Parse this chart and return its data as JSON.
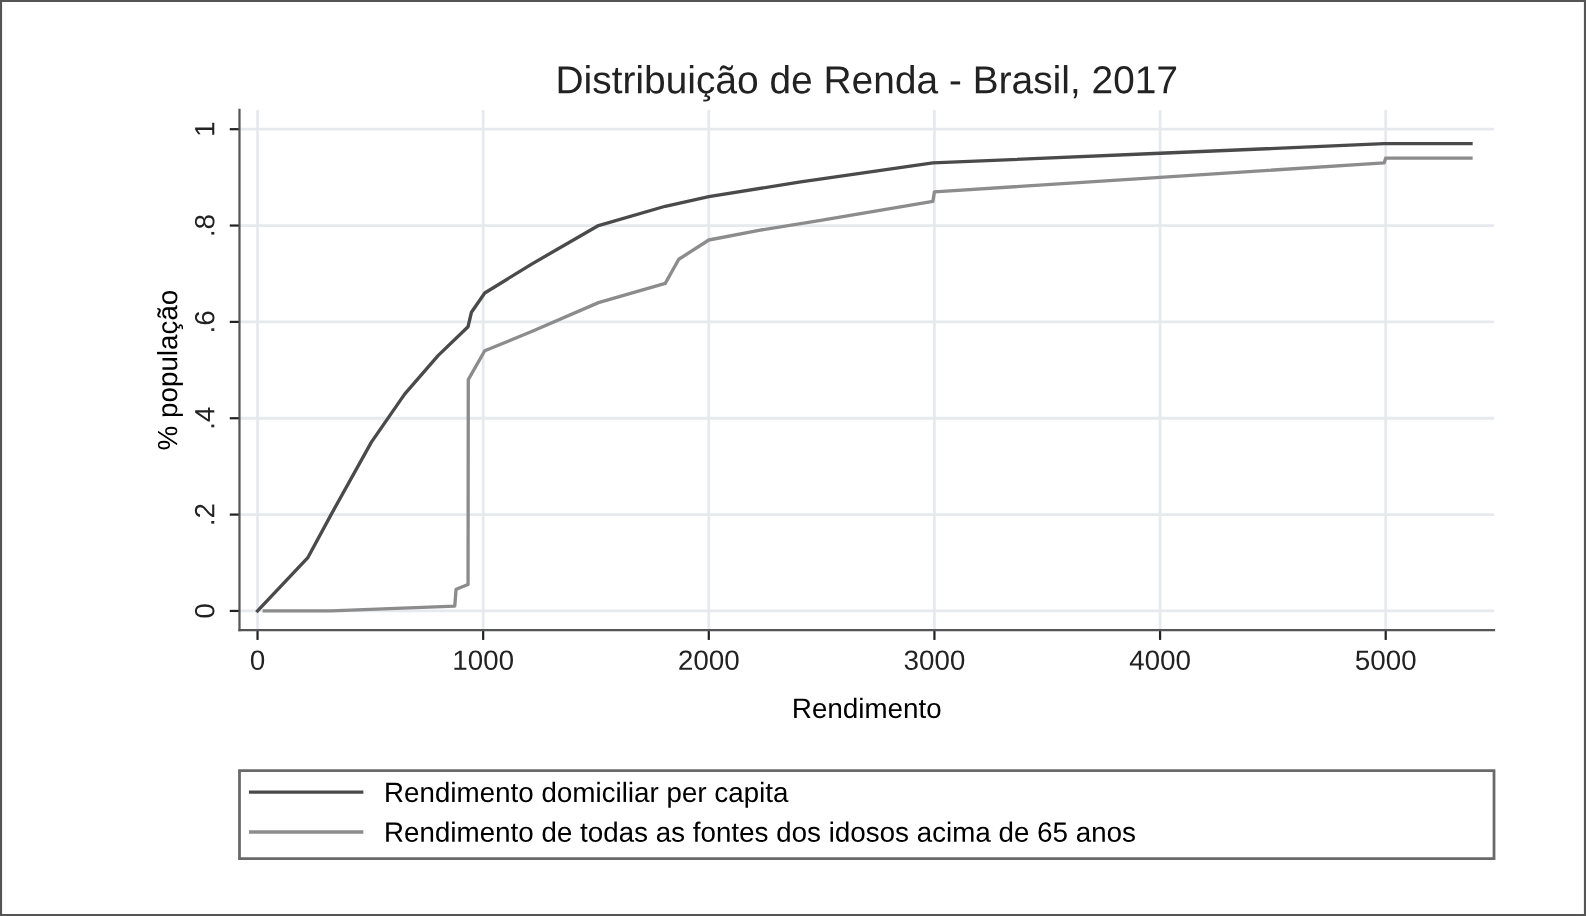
{
  "chart_data": {
    "type": "line",
    "title": "Distribuição de Renda - Brasil, 2017",
    "xlabel": "Rendimento",
    "ylabel": "% população",
    "series": [
      {
        "name": "Rendimento domiciliar per capita",
        "color": "#4a4a4a",
        "x": [
          0,
          222,
          326,
          504,
          652,
          800,
          933,
          948,
          1007,
          1215,
          1511,
          1807,
          2000,
          2400,
          2993,
          4000,
          4993,
          5378
        ],
        "values": [
          0,
          0.11,
          0.2,
          0.35,
          0.45,
          0.53,
          0.59,
          0.62,
          0.66,
          0.72,
          0.8,
          0.84,
          0.86,
          0.89,
          0.93,
          0.95,
          0.97,
          0.97
        ]
      },
      {
        "name": "Rendimento de todas as fontes dos idosos acima de 65 anos",
        "color": "#8c8c8c",
        "x": [
          30,
          326,
          874,
          880,
          933,
          934,
          1007,
          1215,
          1511,
          1807,
          1867,
          2000,
          2222,
          2489,
          2993,
          3000,
          4000,
          4993,
          5000,
          5378
        ],
        "values": [
          0,
          0,
          0.01,
          0.045,
          0.055,
          0.48,
          0.54,
          0.58,
          0.64,
          0.68,
          0.73,
          0.77,
          0.79,
          0.81,
          0.85,
          0.87,
          0.9,
          0.93,
          0.94,
          0.94
        ]
      }
    ],
    "xlim": [
      -80,
      5480
    ],
    "ylim": [
      -0.04,
      1.04
    ],
    "xticks": [
      0,
      1000,
      2000,
      3000,
      4000,
      5000
    ],
    "yticks": [
      0,
      {
        "value": 0.2,
        "label": ".2"
      },
      {
        "value": 0.4,
        "label": ".4"
      },
      {
        "value": 0.6,
        "label": ".6"
      },
      {
        "value": 0.8,
        "label": ".8"
      },
      1
    ],
    "grid": true,
    "legend": "bottom",
    "marker": "none",
    "line_style": "solid"
  }
}
